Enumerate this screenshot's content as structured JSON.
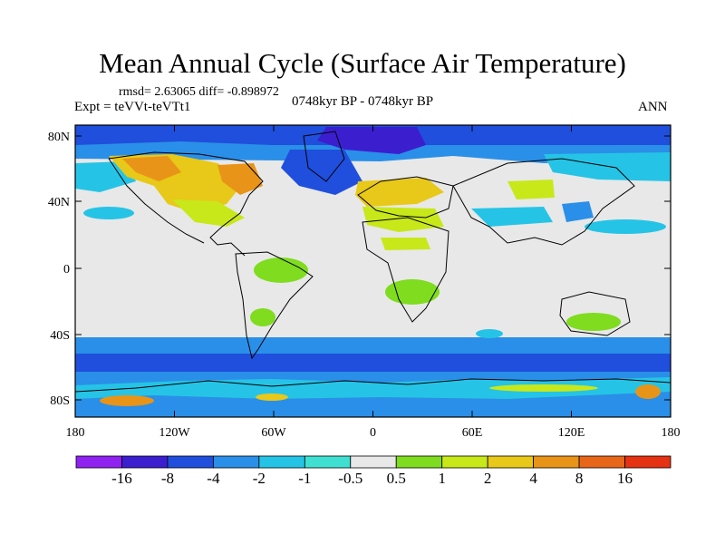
{
  "title": "Mean Annual Cycle (Surface Air Temperature)",
  "stats": "rmsd= 2.63065 diff= -0.898972",
  "expt": "Expt = teVVt-teVTt1",
  "period": "0748kyr BP - 0748kyr BP",
  "season": "ANN",
  "y_ticks": [
    "80N",
    "40N",
    "0",
    "40S",
    "80S"
  ],
  "x_ticks": [
    "180",
    "120W",
    "60W",
    "0",
    "60E",
    "120E",
    "180"
  ],
  "colorbar": {
    "labels": [
      "-16",
      "-8",
      "-4",
      "-2",
      "-1",
      "-0.5",
      "0.5",
      "1",
      "2",
      "4",
      "8",
      "16"
    ],
    "colors": [
      "#8f22f0",
      "#3b1fcf",
      "#1f4fdc",
      "#2a8fe8",
      "#25c4e6",
      "#3fe0d2",
      "#e8e8e8",
      "#7fdc1e",
      "#c8e81a",
      "#e8c818",
      "#e89418",
      "#e8661a",
      "#e43212"
    ]
  }
}
